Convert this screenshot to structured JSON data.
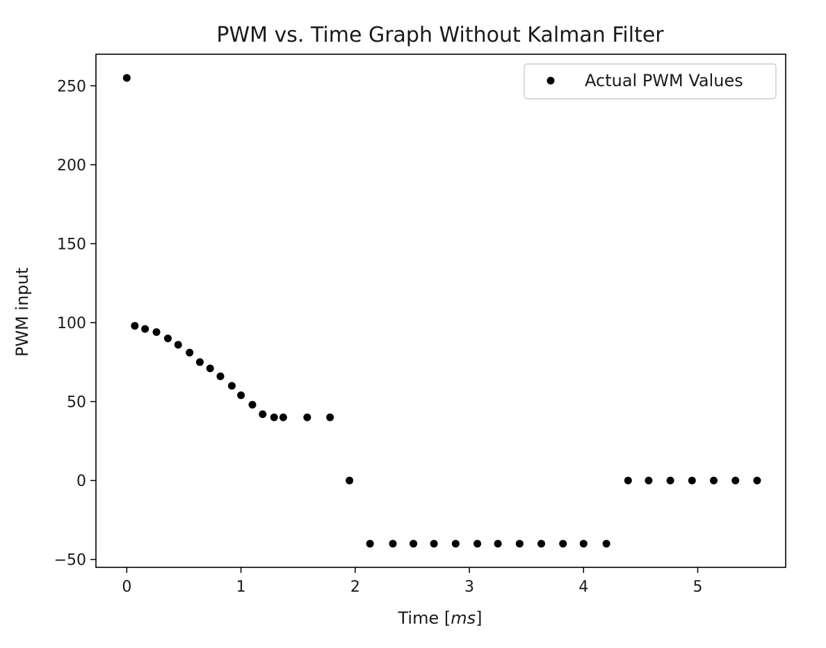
{
  "chart_data": {
    "type": "scatter",
    "title": "PWM vs. Time Graph Without Kalman Filter",
    "xlabel_prefix": "Time [",
    "xlabel_unit": "ms",
    "xlabel_suffix": "]",
    "ylabel": "PWM input",
    "xlim": [
      -0.27,
      5.77
    ],
    "ylim": [
      -55,
      270
    ],
    "xticks": [
      0,
      1,
      2,
      3,
      4,
      5
    ],
    "yticks": [
      -50,
      0,
      50,
      100,
      150,
      200,
      250
    ],
    "ytick_labels": [
      "−50",
      "0",
      "50",
      "100",
      "150",
      "200",
      "250"
    ],
    "grid": false,
    "legend_position": "top-right",
    "series": [
      {
        "name": "Actual PWM Values",
        "color": "#000000",
        "marker": "circle",
        "points": [
          {
            "x": 0.0,
            "y": 255
          },
          {
            "x": 0.07,
            "y": 98
          },
          {
            "x": 0.16,
            "y": 96
          },
          {
            "x": 0.26,
            "y": 94
          },
          {
            "x": 0.36,
            "y": 90
          },
          {
            "x": 0.45,
            "y": 86
          },
          {
            "x": 0.55,
            "y": 81
          },
          {
            "x": 0.64,
            "y": 75
          },
          {
            "x": 0.73,
            "y": 71
          },
          {
            "x": 0.82,
            "y": 66
          },
          {
            "x": 0.92,
            "y": 60
          },
          {
            "x": 1.0,
            "y": 54
          },
          {
            "x": 1.1,
            "y": 48
          },
          {
            "x": 1.19,
            "y": 42
          },
          {
            "x": 1.29,
            "y": 40
          },
          {
            "x": 1.37,
            "y": 40
          },
          {
            "x": 1.58,
            "y": 40
          },
          {
            "x": 1.78,
            "y": 40
          },
          {
            "x": 1.95,
            "y": 0
          },
          {
            "x": 2.13,
            "y": -40
          },
          {
            "x": 2.33,
            "y": -40
          },
          {
            "x": 2.51,
            "y": -40
          },
          {
            "x": 2.69,
            "y": -40
          },
          {
            "x": 2.88,
            "y": -40
          },
          {
            "x": 3.07,
            "y": -40
          },
          {
            "x": 3.25,
            "y": -40
          },
          {
            "x": 3.44,
            "y": -40
          },
          {
            "x": 3.63,
            "y": -40
          },
          {
            "x": 3.82,
            "y": -40
          },
          {
            "x": 4.0,
            "y": -40
          },
          {
            "x": 4.2,
            "y": -40
          },
          {
            "x": 4.39,
            "y": 0
          },
          {
            "x": 4.57,
            "y": 0
          },
          {
            "x": 4.76,
            "y": 0
          },
          {
            "x": 4.95,
            "y": 0
          },
          {
            "x": 5.14,
            "y": 0
          },
          {
            "x": 5.33,
            "y": 0
          },
          {
            "x": 5.52,
            "y": 0
          }
        ]
      }
    ]
  }
}
